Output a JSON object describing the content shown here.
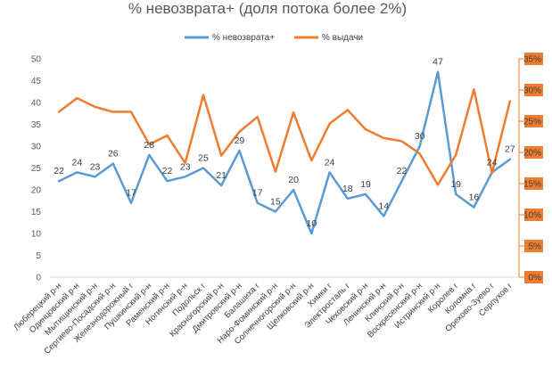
{
  "chart_data": {
    "type": "line",
    "title": "% невозврата+ (доля потока более 2%)",
    "legend_position": "top",
    "categories": [
      "Люберецкий р-н",
      "Одинцовский р-н",
      "Мытищинский р-н",
      "Сергиево-Посадский р-н",
      "Железнодорожный г",
      "Пушкинский р-н",
      "Раменский р-н",
      "Ногинский р-н",
      "Подольск г",
      "Красногорский р-н",
      "Дмитровский р-н",
      "Балашиха г",
      "Наро-Фоминский р-н",
      "Солнечногорский р-н",
      "Щелковский р-н",
      "Химки г",
      "Электросталь г",
      "Чеховский р-н",
      "Ленинский р-н",
      "Клинский р-н",
      "Воскресенский р-н",
      "Истринский р-н",
      "Королев г",
      "Коломна г",
      "Орехово-Зуево г",
      "Серпухов г"
    ],
    "series": [
      {
        "name": "% невозврата+",
        "axis": "left",
        "color": "#5b9bd5",
        "values": [
          22,
          24,
          23,
          26,
          17,
          28,
          22,
          23,
          25,
          21,
          29,
          17,
          15,
          20,
          10,
          24,
          18,
          19,
          14,
          22,
          30,
          47,
          19,
          16,
          24,
          27
        ],
        "labels": [
          "22",
          "24",
          "23",
          "26",
          "17",
          "28",
          "22",
          "23",
          "25",
          "21",
          "29",
          "17",
          "15",
          "20",
          "10",
          "24",
          "18",
          "19",
          "14",
          "22",
          "30",
          "47",
          "19",
          "16",
          "24",
          "27"
        ]
      },
      {
        "name": "% выдачи",
        "axis": "right",
        "color": "#ed7d31",
        "values": [
          26.5,
          28.7,
          27.3,
          26.5,
          26.5,
          21.3,
          22.7,
          18.3,
          29.2,
          19.5,
          23.3,
          25.7,
          16.9,
          26.4,
          18.7,
          24.6,
          26.8,
          23.7,
          22.3,
          21.8,
          19.8,
          14.8,
          19.6,
          30.1,
          16.7,
          28.2
        ]
      }
    ],
    "y_left": {
      "min": 0,
      "max": 50,
      "ticks": [
        "0",
        "5",
        "10",
        "15",
        "20",
        "25",
        "30",
        "35",
        "40",
        "45",
        "50"
      ]
    },
    "y_right": {
      "min": 0,
      "max": 35,
      "ticks": [
        "0%",
        "5%",
        "10%",
        "15%",
        "20%",
        "25%",
        "30%",
        "35%"
      ]
    },
    "grid": false
  }
}
